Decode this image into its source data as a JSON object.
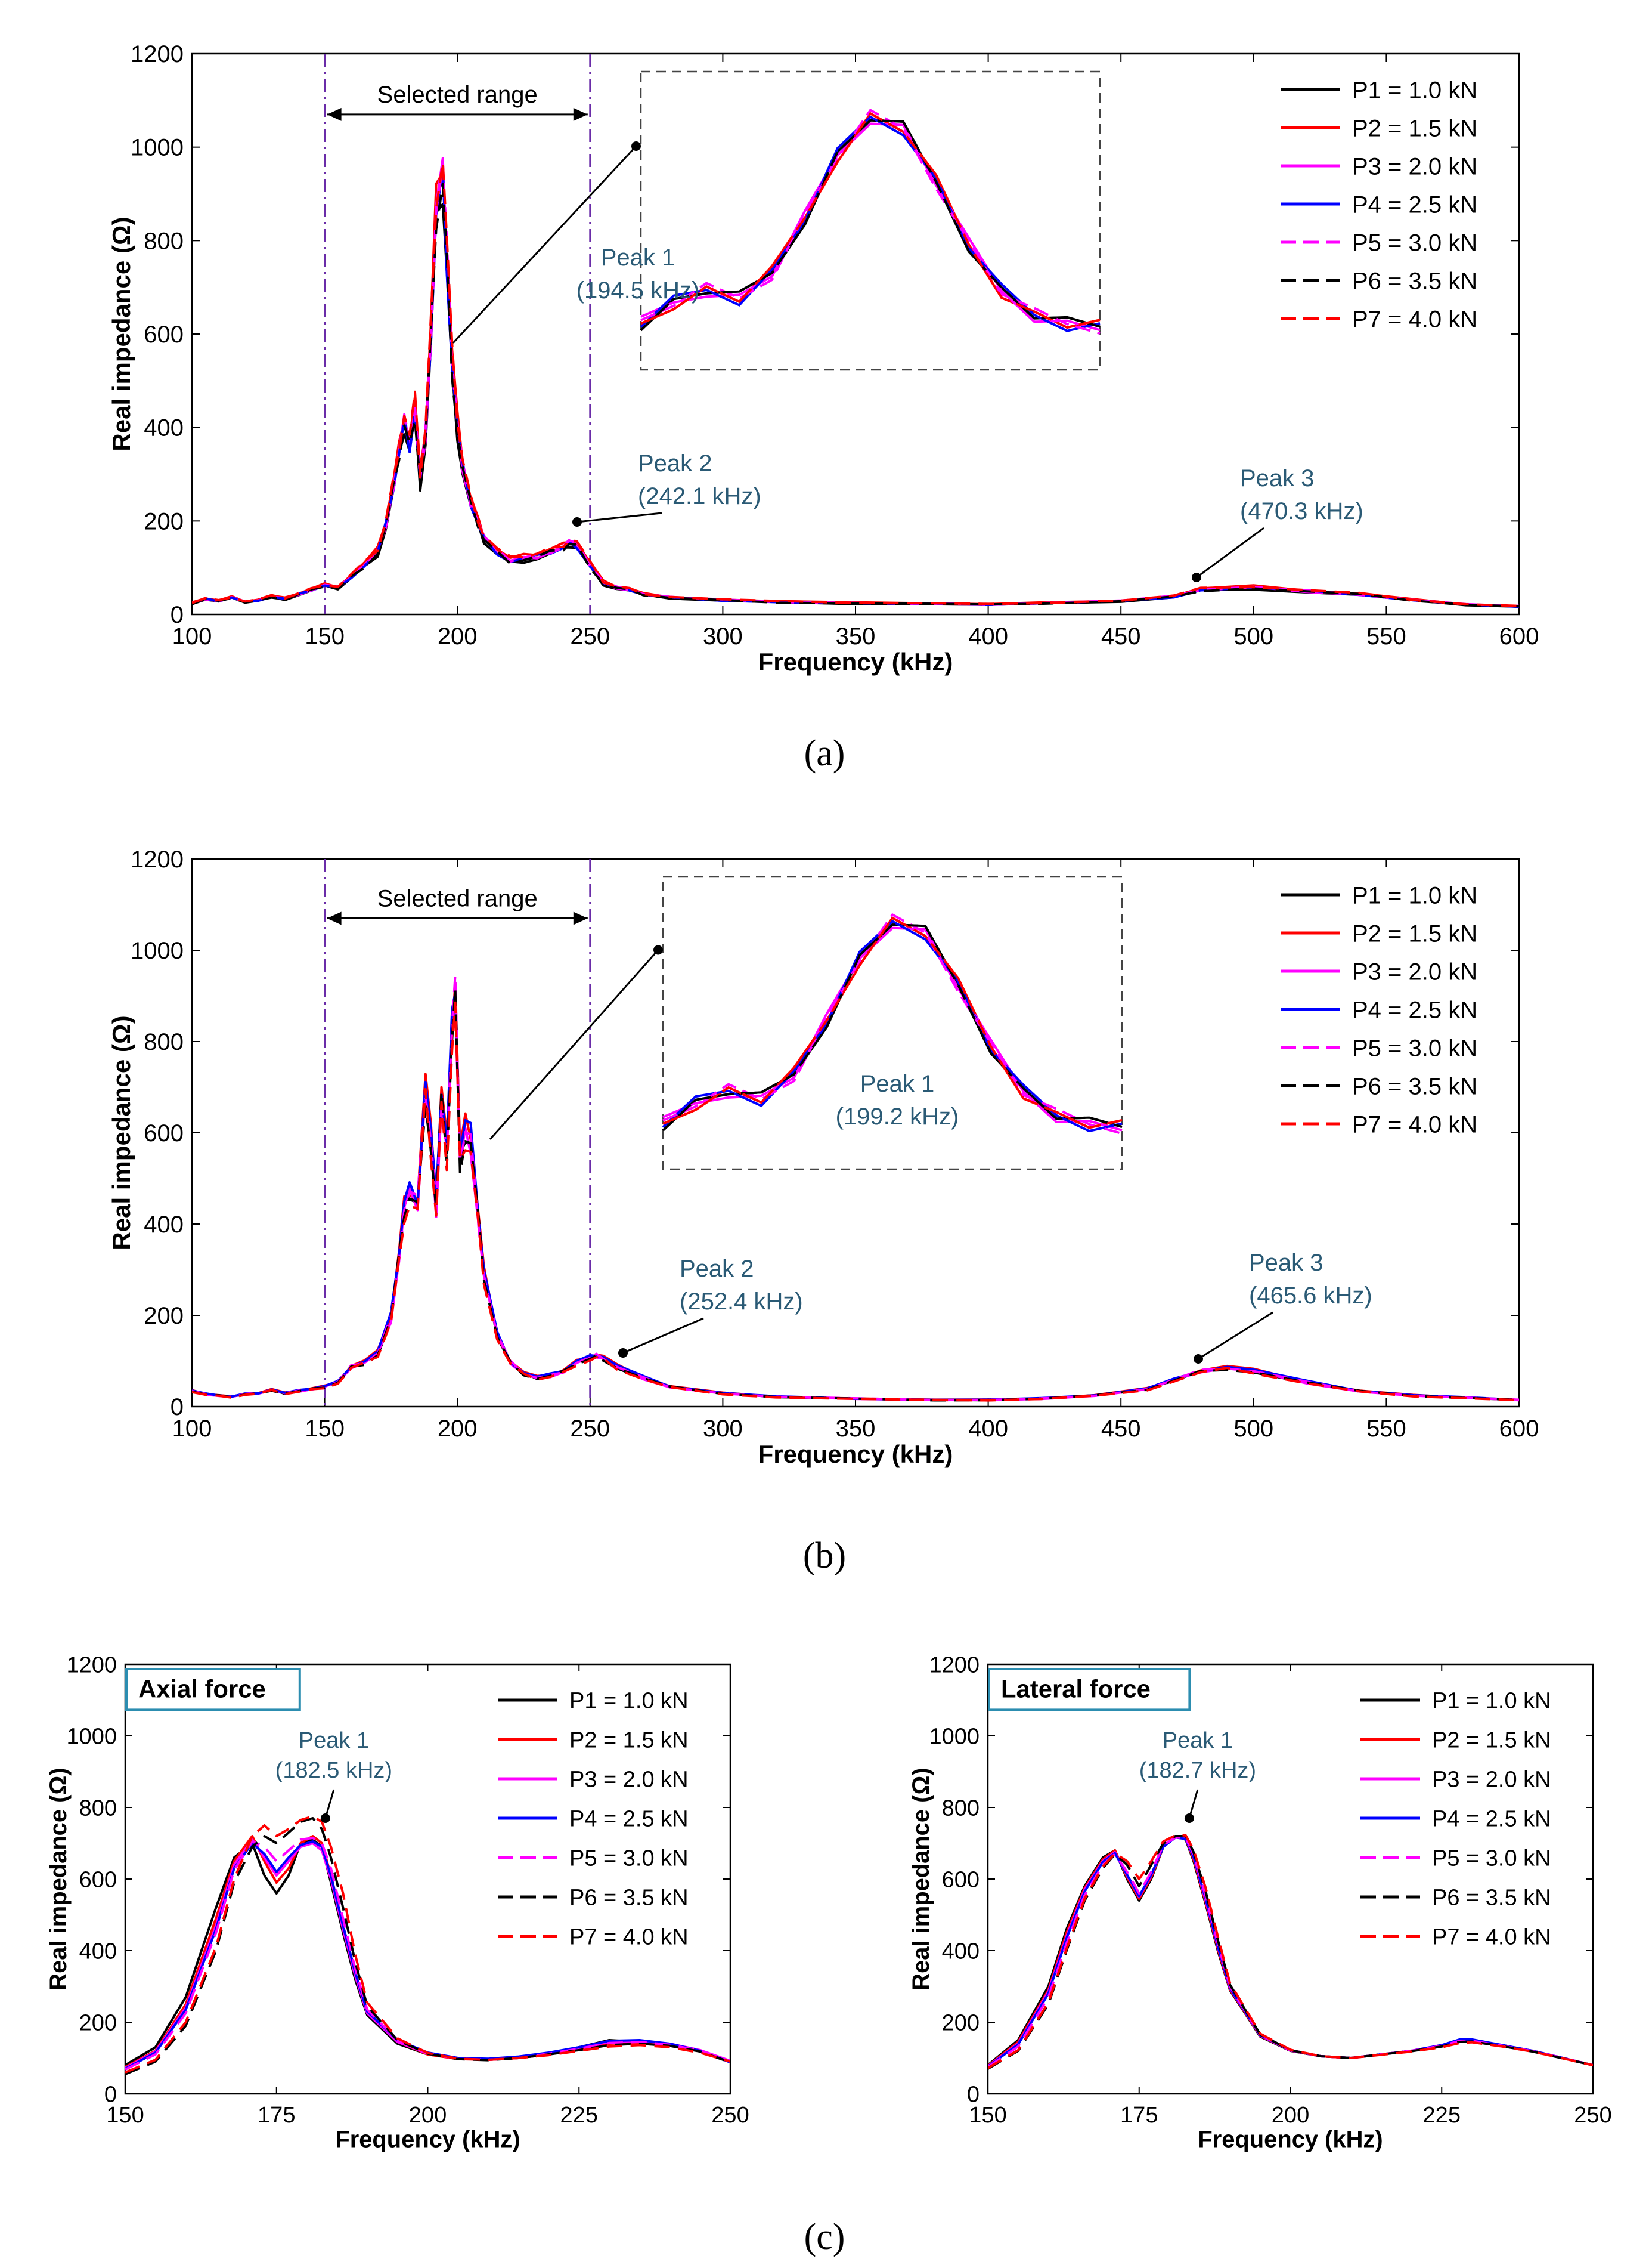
{
  "captions": [
    "(a)",
    "(b)",
    "(c)"
  ],
  "series_styles": [
    {
      "name": "P1 = 1.0 kN",
      "color": "#000000",
      "dash": false
    },
    {
      "name": "P2 = 1.5 kN",
      "color": "#ff0000",
      "dash": false
    },
    {
      "name": "P3 = 2.0 kN",
      "color": "#ff00ff",
      "dash": false
    },
    {
      "name": "P4 = 2.5 kN",
      "color": "#0000ff",
      "dash": false
    },
    {
      "name": "P5 = 3.0 kN",
      "color": "#ff00ff",
      "dash": true
    },
    {
      "name": "P6 = 3.5 kN",
      "color": "#000000",
      "dash": true
    },
    {
      "name": "P7 = 4.0 kN",
      "color": "#ff0000",
      "dash": true
    }
  ],
  "chart_data": [
    {
      "id": "a",
      "type": "line",
      "xlabel": "Frequency (kHz)",
      "ylabel": "Real impedance (Ω)",
      "xlim": [
        100,
        600
      ],
      "ylim": [
        0,
        1200
      ],
      "xticks": [
        100,
        150,
        200,
        250,
        300,
        350,
        400,
        450,
        500,
        550,
        600
      ],
      "yticks": [
        0,
        200,
        400,
        600,
        800,
        1000,
        1200
      ],
      "legend": [
        "P1 = 1.0 kN",
        "P2 = 1.5 kN",
        "P3 = 2.0 kN",
        "P4 = 2.5 kN",
        "P5 = 3.0 kN",
        "P6 = 3.5 kN",
        "P7 = 4.0 kN"
      ],
      "legend_position": "top-right",
      "selected_range": {
        "label": "Selected range",
        "x": [
          150,
          250
        ]
      },
      "x": [
        100,
        105,
        110,
        115,
        120,
        125,
        130,
        135,
        140,
        145,
        150,
        155,
        160,
        165,
        170,
        173,
        176,
        178,
        180,
        182,
        184,
        186,
        188,
        190,
        192,
        194.5,
        196,
        198,
        200,
        202,
        205,
        208,
        210,
        215,
        220,
        225,
        230,
        235,
        240,
        242,
        245,
        250,
        255,
        260,
        265,
        270,
        280,
        300,
        320,
        350,
        380,
        400,
        420,
        450,
        470,
        480,
        500,
        520,
        540,
        560,
        580,
        600
      ],
      "base_values": [
        25,
        35,
        30,
        38,
        28,
        32,
        40,
        35,
        45,
        55,
        65,
        60,
        85,
        110,
        140,
        200,
        290,
        360,
        430,
        380,
        460,
        300,
        400,
        620,
        900,
        980,
        800,
        560,
        420,
        330,
        250,
        200,
        170,
        140,
        120,
        125,
        130,
        140,
        150,
        160,
        155,
        110,
        70,
        60,
        55,
        45,
        38,
        32,
        28,
        25,
        24,
        22,
        25,
        30,
        40,
        55,
        60,
        52,
        45,
        32,
        22,
        18
      ],
      "series_deltas": [
        {
          "name": "P1 = 1.0 kN",
          "offset": 0,
          "scale": 0.92
        },
        {
          "name": "P2 = 1.5 kN",
          "offset": 0,
          "scale": 1.0
        },
        {
          "name": "P3 = 2.0 kN",
          "offset": 0,
          "scale": 0.96
        },
        {
          "name": "P4 = 2.5 kN",
          "offset": 0,
          "scale": 0.95
        },
        {
          "name": "P5 = 3.0 kN",
          "offset": 0,
          "scale": 0.97
        },
        {
          "name": "P6 = 3.5 kN",
          "offset": 1,
          "scale": 0.94
        },
        {
          "name": "P7 = 4.0 kN",
          "offset": 1,
          "scale": 1.0
        }
      ],
      "peaks": [
        {
          "label": "Peak 1",
          "detail": "(194.5 kHz)",
          "x": 194.5
        },
        {
          "label": "Peak 2",
          "detail": "(242.1 kHz)",
          "x": 242.1
        },
        {
          "label": "Peak 3",
          "detail": "(470.3 kHz)",
          "x": 470.3
        }
      ]
    },
    {
      "id": "b",
      "type": "line",
      "xlabel": "Frequency (kHz)",
      "ylabel": "Real impedance (Ω)",
      "xlim": [
        100,
        600
      ],
      "ylim": [
        0,
        1200
      ],
      "xticks": [
        100,
        150,
        200,
        250,
        300,
        350,
        400,
        450,
        500,
        550,
        600
      ],
      "yticks": [
        0,
        200,
        400,
        600,
        800,
        1000,
        1200
      ],
      "legend": [
        "P1 = 1.0 kN",
        "P2 = 1.5 kN",
        "P3 = 2.0 kN",
        "P4 = 2.5 kN",
        "P5 = 3.0 kN",
        "P6 = 3.5 kN",
        "P7 = 4.0 kN"
      ],
      "legend_position": "top-right",
      "selected_range": {
        "label": "Selected range",
        "x": [
          150,
          250
        ]
      },
      "x": [
        100,
        105,
        110,
        115,
        120,
        125,
        130,
        135,
        140,
        145,
        150,
        155,
        160,
        165,
        170,
        175,
        178,
        180,
        182,
        185,
        188,
        190,
        192,
        194,
        196,
        198,
        199.2,
        201,
        203,
        205,
        208,
        210,
        215,
        220,
        225,
        230,
        235,
        240,
        245,
        250,
        252.4,
        255,
        260,
        270,
        280,
        300,
        320,
        350,
        380,
        400,
        420,
        440,
        460,
        470,
        480,
        490,
        500,
        520,
        540,
        560,
        580,
        600
      ],
      "base_values": [
        35,
        28,
        25,
        22,
        28,
        30,
        38,
        30,
        35,
        40,
        45,
        55,
        90,
        100,
        120,
        200,
        340,
        450,
        480,
        460,
        720,
        600,
        450,
        700,
        580,
        850,
        940,
        560,
        620,
        600,
        420,
        300,
        160,
        100,
        75,
        65,
        70,
        80,
        100,
        110,
        115,
        110,
        90,
        65,
        45,
        30,
        22,
        18,
        15,
        15,
        18,
        25,
        40,
        60,
        80,
        88,
        80,
        55,
        35,
        25,
        20,
        15
      ],
      "series_deltas": [
        {
          "name": "P1 = 1.0 kN",
          "offset": 0,
          "scale": 0.97
        },
        {
          "name": "P2 = 1.5 kN",
          "offset": 0,
          "scale": 1.0
        },
        {
          "name": "P3 = 2.0 kN",
          "offset": 0,
          "scale": 0.96
        },
        {
          "name": "P4 = 2.5 kN",
          "offset": 0,
          "scale": 1.0
        },
        {
          "name": "P5 = 3.0 kN",
          "offset": 0,
          "scale": 0.97
        },
        {
          "name": "P6 = 3.5 kN",
          "offset": 1,
          "scale": 0.95
        },
        {
          "name": "P7 = 4.0 kN",
          "offset": 1,
          "scale": 0.93
        }
      ],
      "peaks": [
        {
          "label": "Peak 1",
          "detail": "(199.2 kHz)",
          "x": 199.2
        },
        {
          "label": "Peak 2",
          "detail": "(252.4 kHz)",
          "x": 252.4
        },
        {
          "label": "Peak 3",
          "detail": "(465.6 kHz)",
          "x": 465.6
        }
      ]
    },
    {
      "id": "c-axial",
      "type": "line",
      "title": "Axial force",
      "xlabel": "Frequency (kHz)",
      "ylabel": "Real impedance (Ω)",
      "xlim": [
        150,
        250
      ],
      "ylim": [
        0,
        1200
      ],
      "xticks": [
        150,
        175,
        200,
        225,
        250
      ],
      "yticks": [
        0,
        200,
        400,
        600,
        800,
        1000,
        1200
      ],
      "legend": [
        "P1 = 1.0 kN",
        "P2 = 1.5 kN",
        "P3 = 2.0 kN",
        "P4 = 2.5 kN",
        "P5 = 3.0 kN",
        "P6 = 3.5 kN",
        "P7 = 4.0 kN"
      ],
      "legend_position": "top-right",
      "x": [
        150,
        155,
        160,
        165,
        168,
        171,
        173,
        175,
        177,
        179,
        181,
        182.5,
        184,
        186,
        188,
        190,
        195,
        200,
        205,
        210,
        215,
        220,
        225,
        230,
        235,
        240,
        245,
        250
      ],
      "series": [
        {
          "name": "P1 = 1.0 kN",
          "values": [
            80,
            130,
            270,
            520,
            660,
            700,
            610,
            560,
            610,
            700,
            710,
            690,
            590,
            450,
            320,
            220,
            140,
            110,
            98,
            95,
            100,
            110,
            130,
            150,
            145,
            135,
            120,
            90
          ]
        },
        {
          "name": "P2 = 1.5 kN",
          "values": [
            75,
            120,
            250,
            490,
            650,
            720,
            650,
            590,
            630,
            700,
            720,
            700,
            610,
            470,
            340,
            230,
            145,
            110,
            97,
            95,
            100,
            110,
            125,
            140,
            142,
            135,
            120,
            90
          ]
        },
        {
          "name": "P3 = 2.0 kN",
          "values": [
            72,
            118,
            240,
            470,
            640,
            710,
            660,
            610,
            650,
            690,
            700,
            680,
            600,
            460,
            330,
            225,
            145,
            112,
            98,
            96,
            102,
            112,
            128,
            145,
            148,
            140,
            122,
            92
          ]
        },
        {
          "name": "P4 = 2.5 kN",
          "values": [
            70,
            115,
            235,
            460,
            630,
            700,
            670,
            620,
            660,
            695,
            705,
            690,
            610,
            470,
            340,
            230,
            150,
            115,
            100,
            98,
            104,
            115,
            130,
            148,
            150,
            140,
            120,
            88
          ]
        },
        {
          "name": "P5 = 3.0 kN",
          "values": [
            68,
            110,
            225,
            450,
            625,
            705,
            690,
            650,
            680,
            710,
            715,
            700,
            630,
            490,
            350,
            235,
            150,
            113,
            98,
            95,
            100,
            112,
            126,
            142,
            145,
            137,
            120,
            90
          ]
        },
        {
          "name": "P6 = 3.5 kN",
          "values": [
            55,
            90,
            190,
            400,
            590,
            690,
            720,
            700,
            730,
            760,
            770,
            740,
            660,
            520,
            370,
            245,
            150,
            112,
            97,
            94,
            100,
            110,
            122,
            136,
            140,
            134,
            118,
            88
          ]
        },
        {
          "name": "P7 = 4.0 kN",
          "values": [
            60,
            95,
            200,
            410,
            600,
            720,
            750,
            720,
            740,
            765,
            775,
            760,
            690,
            560,
            390,
            255,
            155,
            114,
            98,
            95,
            100,
            108,
            120,
            132,
            136,
            130,
            115,
            90
          ]
        }
      ],
      "peaks": [
        {
          "label": "Peak 1",
          "detail": "(182.5 kHz)",
          "x": 182.5
        }
      ]
    },
    {
      "id": "c-lateral",
      "type": "line",
      "title": "Lateral force",
      "xlabel": "Frequency (kHz)",
      "ylabel": "Real impedance (Ω)",
      "xlim": [
        150,
        250
      ],
      "ylim": [
        0,
        1200
      ],
      "xticks": [
        150,
        175,
        200,
        225,
        250
      ],
      "yticks": [
        0,
        200,
        400,
        600,
        800,
        1000,
        1200
      ],
      "legend": [
        "P1 = 1.0 kN",
        "P2 = 1.5 kN",
        "P3 = 2.0 kN",
        "P4 = 2.5 kN",
        "P5 = 3.0 kN",
        "P6 = 3.5 kN",
        "P7 = 4.0 kN"
      ],
      "legend_position": "top-right",
      "x": [
        150,
        155,
        160,
        163,
        166,
        169,
        171,
        173,
        175,
        177,
        179,
        181,
        182.7,
        184,
        186,
        188,
        190,
        195,
        200,
        205,
        210,
        215,
        220,
        225,
        228,
        230,
        235,
        240,
        245,
        250
      ],
      "series": [
        {
          "name": "P1 = 1.0 kN",
          "values": [
            80,
            150,
            300,
            460,
            580,
            660,
            680,
            600,
            540,
            600,
            690,
            720,
            710,
            650,
            530,
            400,
            290,
            160,
            120,
            105,
            100,
            110,
            120,
            135,
            150,
            150,
            135,
            120,
            100,
            80
          ]
        },
        {
          "name": "P2 = 1.5 kN",
          "values": [
            78,
            145,
            290,
            450,
            575,
            655,
            680,
            605,
            545,
            605,
            690,
            720,
            712,
            655,
            535,
            405,
            292,
            162,
            121,
            105,
            100,
            110,
            120,
            135,
            150,
            150,
            135,
            120,
            100,
            80
          ]
        },
        {
          "name": "P3 = 2.0 kN",
          "values": [
            77,
            140,
            285,
            440,
            570,
            650,
            675,
            610,
            550,
            610,
            690,
            718,
            712,
            660,
            540,
            410,
            295,
            163,
            121,
            105,
            100,
            110,
            120,
            136,
            150,
            150,
            135,
            120,
            100,
            80
          ]
        },
        {
          "name": "P4 = 2.5 kN",
          "values": [
            76,
            138,
            280,
            435,
            565,
            648,
            672,
            612,
            552,
            612,
            690,
            716,
            712,
            662,
            545,
            412,
            296,
            164,
            122,
            105,
            100,
            110,
            120,
            136,
            152,
            152,
            136,
            120,
            100,
            80
          ]
        },
        {
          "name": "P5 = 3.0 kN",
          "values": [
            75,
            132,
            270,
            420,
            555,
            640,
            670,
            620,
            560,
            620,
            695,
            716,
            715,
            668,
            552,
            420,
            300,
            165,
            122,
            105,
            100,
            110,
            120,
            134,
            148,
            148,
            134,
            119,
            100,
            80
          ]
        },
        {
          "name": "P6 = 3.5 kN",
          "values": [
            70,
            120,
            250,
            400,
            540,
            630,
            670,
            640,
            580,
            640,
            700,
            720,
            720,
            675,
            565,
            430,
            305,
            166,
            122,
            105,
            100,
            110,
            119,
            132,
            145,
            146,
            133,
            118,
            99,
            80
          ]
        },
        {
          "name": "P7 = 4.0 kN",
          "values": [
            72,
            122,
            255,
            405,
            545,
            635,
            672,
            650,
            600,
            650,
            705,
            722,
            722,
            682,
            575,
            440,
            310,
            168,
            123,
            105,
            100,
            109,
            118,
            130,
            142,
            144,
            132,
            118,
            99,
            80
          ]
        }
      ],
      "peaks": [
        {
          "label": "Peak 1",
          "detail": "(182.7 kHz)",
          "x": 182.7
        }
      ]
    }
  ]
}
